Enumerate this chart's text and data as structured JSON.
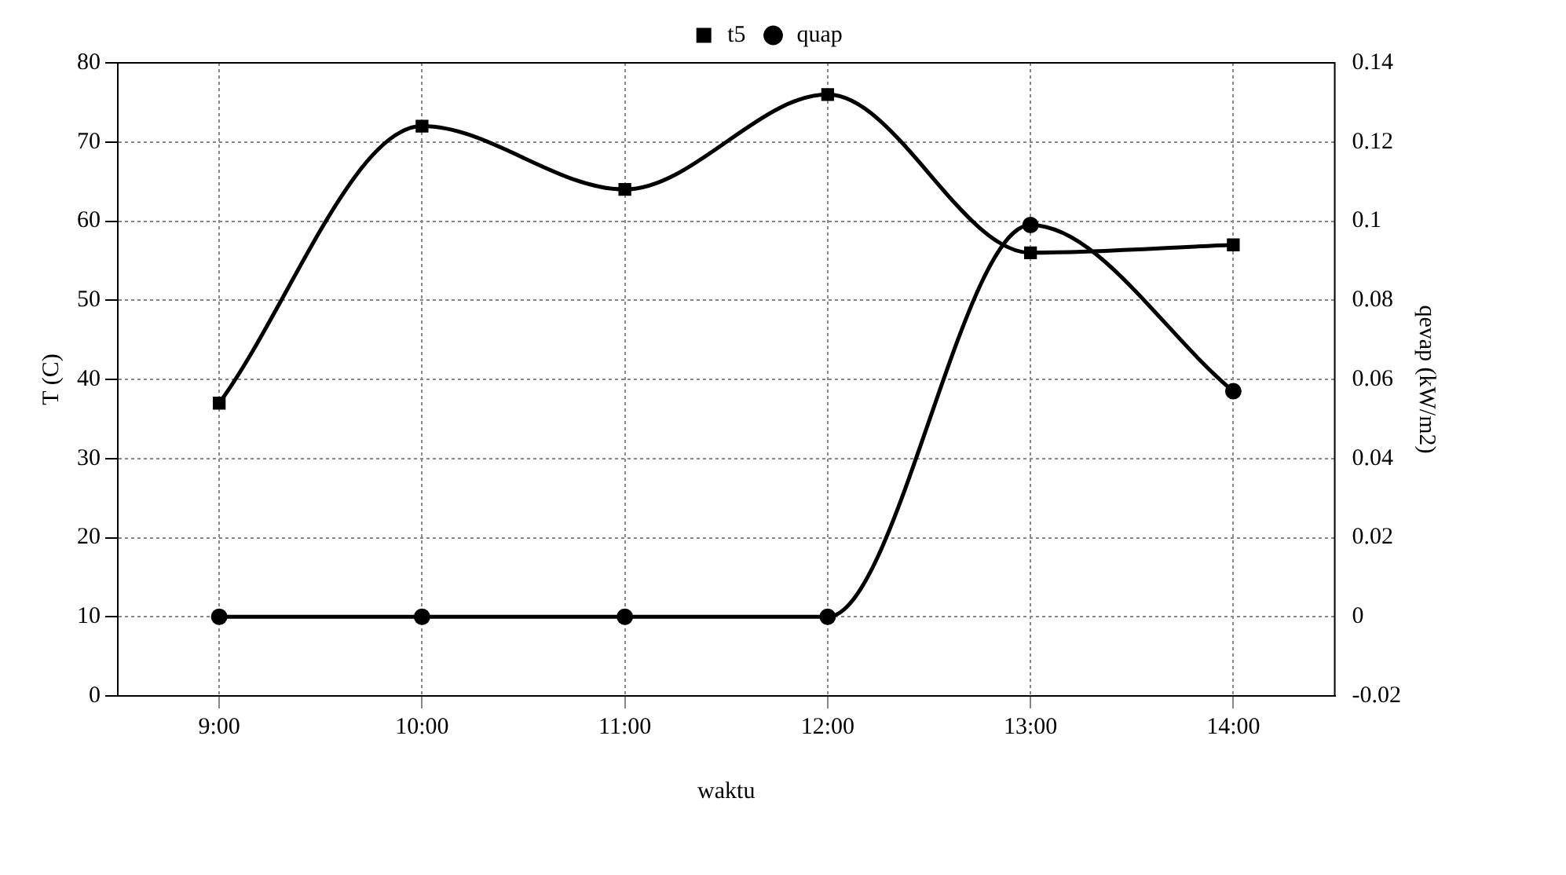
{
  "chart_data": {
    "type": "line",
    "xlabel": "waktu",
    "ylabel": "T (C)",
    "y2label": "qevap (kW/m2)",
    "categories": [
      "9:00",
      "10:00",
      "11:00",
      "12:00",
      "13:00",
      "14:00"
    ],
    "series": [
      {
        "name": "t5",
        "color": "#000000",
        "marker": "square",
        "values": [
          37,
          72,
          64,
          76,
          56,
          57
        ]
      },
      {
        "name": "quap",
        "color": "#000000",
        "marker": "circle",
        "axis": "y2",
        "values": [
          0,
          0,
          0,
          0,
          0.099,
          0.057
        ]
      }
    ],
    "ylim": [
      0,
      80
    ],
    "yticks": [
      0,
      10,
      20,
      30,
      40,
      50,
      60,
      70,
      80
    ],
    "y2lim": [
      -0.02,
      0.14
    ],
    "y2ticks": [
      -0.02,
      0,
      0.02,
      0.04,
      0.06,
      0.08,
      0.1,
      0.12,
      0.14
    ],
    "grid": true,
    "legend": "top",
    "line_style": "solid"
  }
}
